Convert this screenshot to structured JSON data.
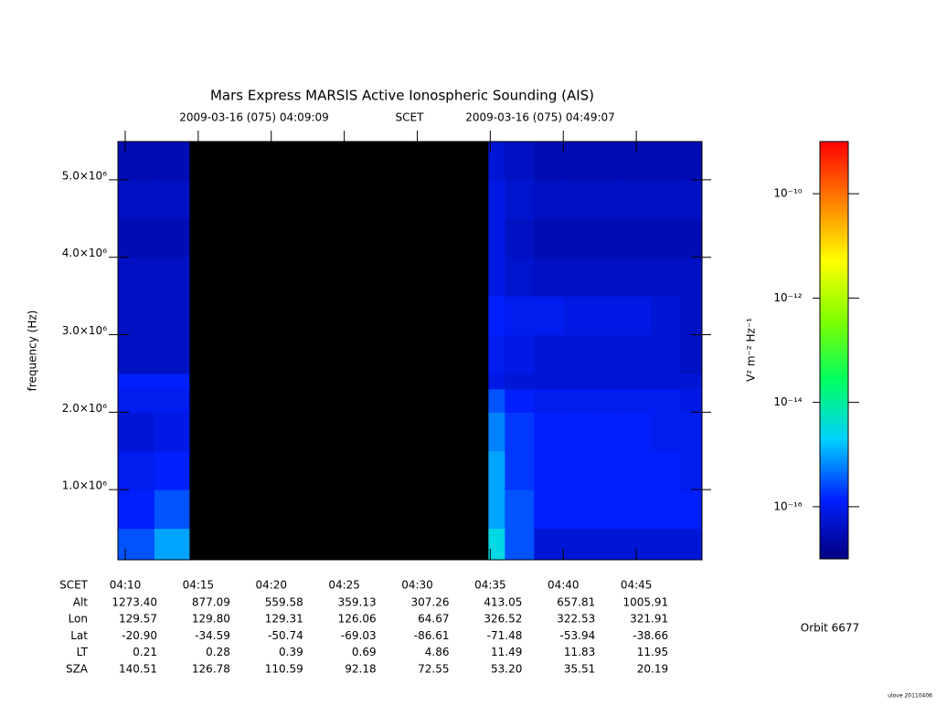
{
  "chart_data": {
    "type": "heatmap",
    "title": "Mars Express MARSIS Active Ionospheric Sounding (AIS)",
    "subtitle_start": "2009-03-16 (075) 04:09:09",
    "subtitle_mid": "SCET",
    "subtitle_end": "2009-03-16 (075) 04:49:07",
    "ylabel": "frequency (Hz)",
    "x": [
      249.5,
      252,
      254.375,
      274.875,
      276,
      278,
      280,
      282,
      284,
      286,
      288,
      289.5
    ],
    "y": [
      94000,
      500000,
      1000000,
      1500000,
      2000000,
      2300000,
      2500000,
      3000000,
      3500000,
      4000000,
      4500000,
      5000000,
      5494000
    ],
    "z": [
      [
        3e-16,
        1e-15,
        null,
        3e-15,
        3e-16,
        6e-17,
        6e-17,
        6e-17,
        6e-17,
        6e-17,
        6e-17
      ],
      [
        1.3e-16,
        3e-16,
        null,
        1e-15,
        3e-16,
        1.3e-16,
        1.3e-16,
        1.3e-16,
        1.3e-16,
        1.3e-16,
        1.3e-16
      ],
      [
        1e-16,
        1.3e-16,
        null,
        1e-15,
        2e-16,
        1.3e-16,
        1.3e-16,
        1.3e-16,
        1.3e-16,
        1.3e-16,
        1e-16
      ],
      [
        6e-17,
        8e-17,
        null,
        6e-16,
        2e-16,
        1.3e-16,
        1.3e-16,
        1.3e-16,
        1.3e-16,
        1e-16,
        1e-16
      ],
      [
        1e-16,
        1e-16,
        null,
        3e-16,
        1.3e-16,
        1e-16,
        1e-16,
        1e-16,
        1e-16,
        1e-16,
        8e-17
      ],
      [
        1.3e-16,
        1.3e-16,
        null,
        8e-17,
        6e-17,
        6e-17,
        6e-17,
        6e-17,
        6e-17,
        6e-17,
        6e-17
      ],
      [
        4e-17,
        4e-17,
        null,
        1e-16,
        8e-17,
        6e-17,
        6e-17,
        6e-17,
        6e-17,
        6e-17,
        4e-17
      ],
      [
        4e-17,
        4e-17,
        null,
        1.3e-16,
        1e-16,
        1e-16,
        8e-17,
        8e-17,
        8e-17,
        6e-17,
        4e-17
      ],
      [
        4e-17,
        4e-17,
        null,
        8e-17,
        5e-17,
        4e-17,
        4e-17,
        4e-17,
        4e-17,
        4e-17,
        4e-17
      ],
      [
        3e-17,
        3e-17,
        null,
        8e-17,
        4e-17,
        3e-17,
        3e-17,
        3e-17,
        3e-17,
        3e-17,
        3e-17
      ],
      [
        4e-17,
        4e-17,
        null,
        8e-17,
        5e-17,
        4e-17,
        4e-17,
        4e-17,
        4e-17,
        4e-17,
        4e-17
      ],
      [
        3e-17,
        3e-17,
        null,
        6e-17,
        4e-17,
        3e-17,
        3e-17,
        3e-17,
        3e-17,
        3e-17,
        3e-17
      ]
    ],
    "xlim": [
      249.5,
      289.5
    ],
    "xticks": [
      {
        "value": 250,
        "label": "04:10"
      },
      {
        "value": 255,
        "label": "04:15"
      },
      {
        "value": 260,
        "label": "04:20"
      },
      {
        "value": 265,
        "label": "04:25"
      },
      {
        "value": 270,
        "label": "04:30"
      },
      {
        "value": 275,
        "label": "04:35"
      },
      {
        "value": 280,
        "label": "04:40"
      },
      {
        "value": 285,
        "label": "04:45"
      }
    ],
    "ylim": [
      94000,
      5494000
    ],
    "yticks": [
      {
        "value": 1000000,
        "label": "1.0×10⁶"
      },
      {
        "value": 2000000,
        "label": "2.0×10⁶"
      },
      {
        "value": 3000000,
        "label": "3.0×10⁶"
      },
      {
        "value": 4000000,
        "label": "4.0×10⁶"
      },
      {
        "value": 5000000,
        "label": "5.0×10⁶"
      }
    ],
    "missing_color": "#000000",
    "colorscale": [
      "#000080",
      "#0020ff",
      "#00d0ff",
      "#00ff60",
      "#80ff00",
      "#ffff00",
      "#ff8000",
      "#ff0000"
    ],
    "zlog": true,
    "zlim": [
      1e-17,
      1e-09
    ],
    "zticks": [
      {
        "value": 1e-10,
        "label": "10⁻¹⁰"
      },
      {
        "value": 1e-12,
        "label": "10⁻¹²"
      },
      {
        "value": 1e-14,
        "label": "10⁻¹⁴"
      },
      {
        "value": 1e-16,
        "label": "10⁻¹⁶"
      }
    ],
    "zlabel": "V² m⁻² Hz⁻¹",
    "ephemeris_x_label": "SCET",
    "ephemeris": [
      {
        "name": "Alt",
        "values": [
          "1273.40",
          "877.09",
          "559.58",
          "359.13",
          "307.26",
          "413.05",
          "657.81",
          "1005.91"
        ]
      },
      {
        "name": "Lon",
        "values": [
          "129.57",
          "129.80",
          "129.31",
          "126.06",
          "64.67",
          "326.52",
          "322.53",
          "321.91"
        ]
      },
      {
        "name": "Lat",
        "values": [
          "-20.90",
          "-34.59",
          "-50.74",
          "-69.03",
          "-86.61",
          "-71.48",
          "-53.94",
          "-38.66"
        ]
      },
      {
        "name": "LT",
        "values": [
          "0.21",
          "0.28",
          "0.39",
          "0.69",
          "4.86",
          "11.49",
          "11.83",
          "11.95"
        ]
      },
      {
        "name": "SZA",
        "values": [
          "140.51",
          "126.78",
          "110.59",
          "92.18",
          "72.55",
          "53.20",
          "35.51",
          "20.19"
        ]
      }
    ],
    "orbit": "Orbit 6677",
    "credit": "ulove 20110406"
  }
}
